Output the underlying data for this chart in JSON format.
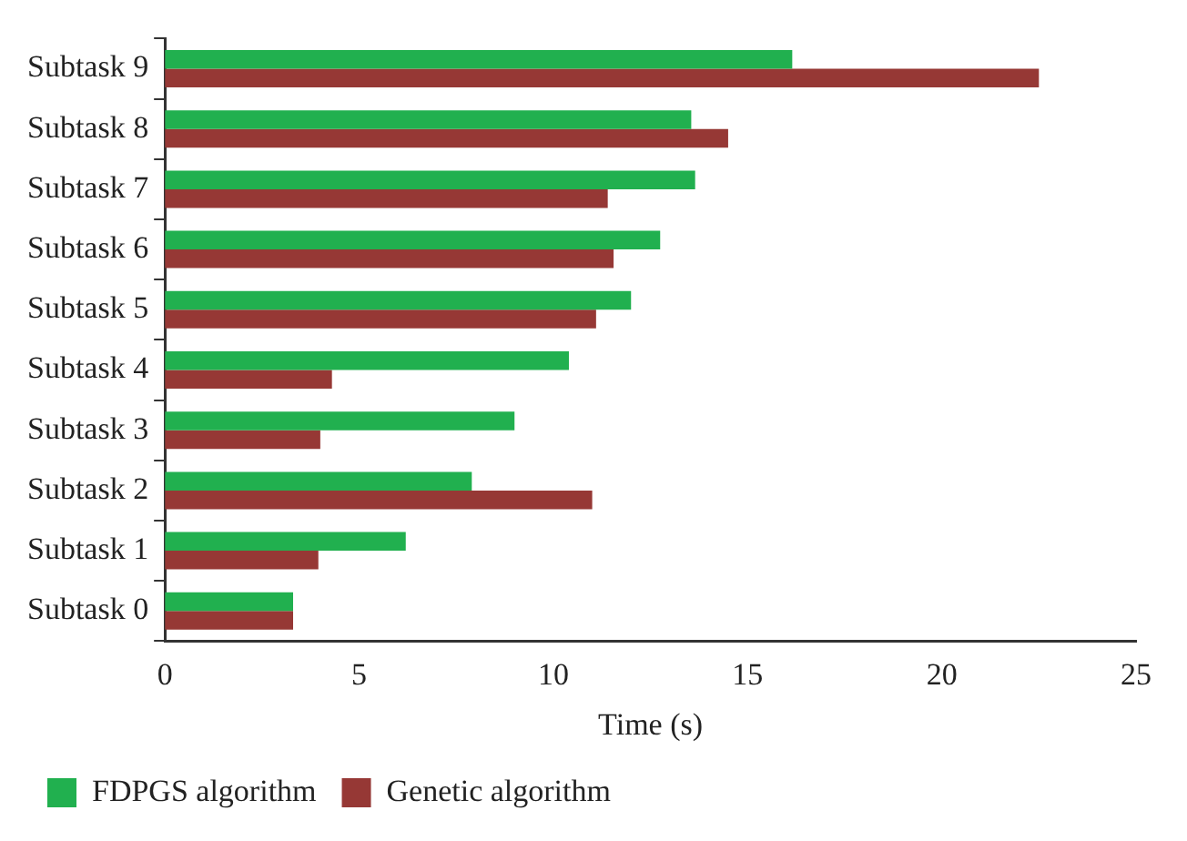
{
  "chart_data": {
    "type": "bar",
    "orientation": "horizontal",
    "xlabel": "Time (s)",
    "categories": [
      "Subtask 9",
      "Subtask 8",
      "Subtask 7",
      "Subtask 6",
      "Subtask 5",
      "Subtask 4",
      "Subtask 3",
      "Subtask 2",
      "Subtask 1",
      "Subtask 0"
    ],
    "series": [
      {
        "name": "FDPGS algorithm",
        "color": "#21b04f",
        "values": [
          16.15,
          13.55,
          13.65,
          12.75,
          12.0,
          10.4,
          9.0,
          7.9,
          6.2,
          3.3
        ]
      },
      {
        "name": "Genetic algorithm",
        "color": "#963835",
        "values": [
          22.5,
          14.5,
          11.4,
          11.55,
          11.1,
          4.3,
          4.0,
          11.0,
          3.95,
          3.3
        ]
      }
    ],
    "xlim": [
      0,
      25
    ],
    "xticks": [
      0,
      5,
      10,
      15,
      20,
      25
    ],
    "grid": false,
    "legend": "bottom left"
  }
}
